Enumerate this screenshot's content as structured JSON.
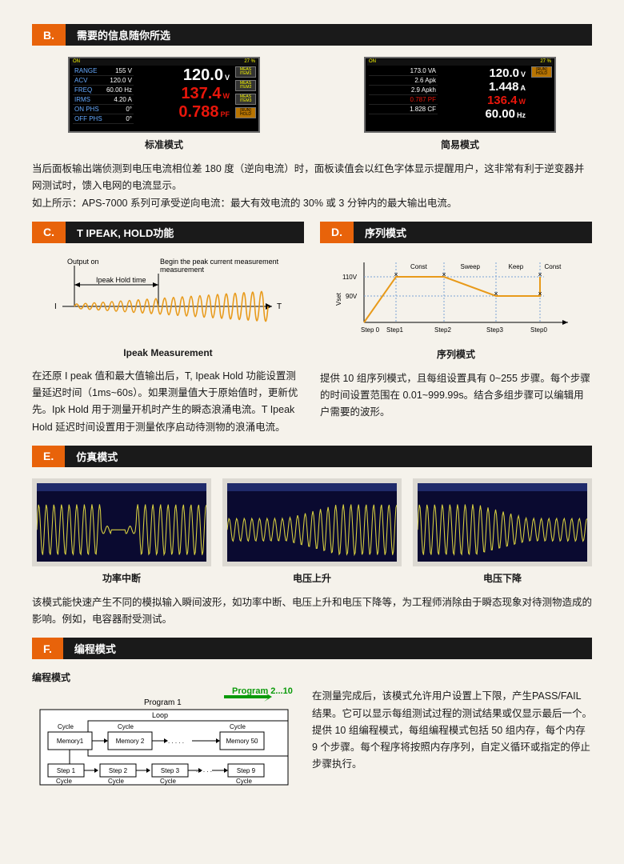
{
  "sectionB": {
    "letter": "B.",
    "title": "需要的信息随你所选",
    "panel1": {
      "left": [
        {
          "lab": "RANGE",
          "val": "155 V"
        },
        {
          "lab": "ACV",
          "val": "120.0 V"
        },
        {
          "lab": "FREQ",
          "val": "60.00 Hz"
        },
        {
          "lab": "IRMS",
          "val": "4.20 A"
        },
        {
          "lab": "ON PHS",
          "val": "0°"
        },
        {
          "lab": "OFF PHS",
          "val": "0°"
        }
      ],
      "mid": [
        {
          "num": "120.0",
          "unit": "V",
          "color": "white"
        },
        {
          "num": "137.4",
          "unit": "W",
          "color": "red"
        },
        {
          "num": "0.788",
          "unit": "PF",
          "color": "red"
        }
      ],
      "on": "ON",
      "pct": "27 %",
      "btns": [
        "MEAS ITEM1",
        "MEAS ITEM2",
        "MEAS ITEM3",
        "[RUN] HOLD"
      ],
      "caption": "标准模式"
    },
    "panel2": {
      "left": [
        {
          "lab": "",
          "val": "173.0 VA",
          "color": "white"
        },
        {
          "lab": "",
          "val": "2.6 Apk",
          "color": "white"
        },
        {
          "lab": "",
          "val": "2.9 Apkh",
          "color": "white"
        },
        {
          "lab": "",
          "val": "0.787 PF",
          "color": "red"
        },
        {
          "lab": "",
          "val": "1.828 CF",
          "color": "white"
        }
      ],
      "mid": [
        {
          "num": "120.0",
          "unit": "V",
          "color": "white"
        },
        {
          "num": "1.448",
          "unit": "A",
          "color": "white"
        },
        {
          "num": "136.4",
          "unit": "W",
          "color": "red"
        },
        {
          "num": "60.00",
          "unit": "Hz",
          "color": "white"
        }
      ],
      "on": "ON",
      "pct": "27 %",
      "btns": [
        "[RUN] HOLD"
      ],
      "caption": "简易模式"
    },
    "body": "当后面板输出端侦测到电压电流相位差 180 度（逆向电流）时，面板读值会以红色字体显示提醒用户，这非常有利于逆变器并网测试时，馈入电网的电流显示。\n如上所示：APS-7000 系列可承受逆向电流：最大有效电流的 30% 或 3 分钟内的最大输出电流。"
  },
  "sectionC": {
    "letter": "C.",
    "title": "T IPEAK, HOLD功能",
    "labels": {
      "output": "Output on",
      "begin": "Begin the peak current measurement",
      "hold": "Ipeak Hold time",
      "I": "I",
      "T": "T"
    },
    "caption": "Ipeak Measurement",
    "waveColor": "#e89a1a",
    "body": "在还原 I peak 值和最大值输出后，T, Ipeak Hold 功能设置测量延迟时间（1ms~60s）。如果测量值大于原始值时，更新优先。Ipk Hold 用于测量开机时产生的瞬态浪涌电流。T Ipeak Hold 延迟时间设置用于测量依序启动待测物的浪涌电流。"
  },
  "sectionD": {
    "letter": "D.",
    "title": "序列模式",
    "caption": "序列模式",
    "yticks": [
      "110V",
      "90V"
    ],
    "phases": [
      "Const",
      "Sweep",
      "Keep",
      "Const"
    ],
    "steps": [
      "Step 0",
      "Step1",
      "Step2",
      "Step3",
      "Step0"
    ],
    "lineColor": "#e89a1a",
    "ylabel": "Vset",
    "body": "提供 10 组序列模式，且每组设置具有 0~255 步骤。每个步骤的时间设置范围在 0.01~999.99s。结合多组步骤可以编辑用户需要的波形。"
  },
  "sectionE": {
    "letter": "E.",
    "title": "仿真模式",
    "waveColor": "#d8d040",
    "items": [
      {
        "caption": "功率中断"
      },
      {
        "caption": "电压上升"
      },
      {
        "caption": "电压下降"
      }
    ],
    "body": "该模式能快速产生不同的模拟输入瞬间波形，如功率中断、电压上升和电压下降等，为工程师消除由于瞬态现象对待测物造成的影响。例如，电容器耐受测试。"
  },
  "sectionF": {
    "letter": "F.",
    "title": "编程模式",
    "heading": "编程模式",
    "arrow": "Program 2...10",
    "arrowSub": "Program 1",
    "loop": "Loop",
    "mem": [
      "Memory1",
      "Memory 2",
      "Memory 50"
    ],
    "steps": [
      "Step 1",
      "Step 2",
      "Step 3",
      "Step 9"
    ],
    "cycle": "Cycle",
    "body": "在测量完成后，该模式允许用户设置上下限，产生PASS/FAIL 结果。它可以显示每组测试过程的测试结果或仅显示最后一个。提供 10 组编程模式，每组编程模式包括 50 组内存，每个内存 9 个步骤。每个程序将按照内存序列，自定义循环或指定的停止步骤执行。"
  }
}
